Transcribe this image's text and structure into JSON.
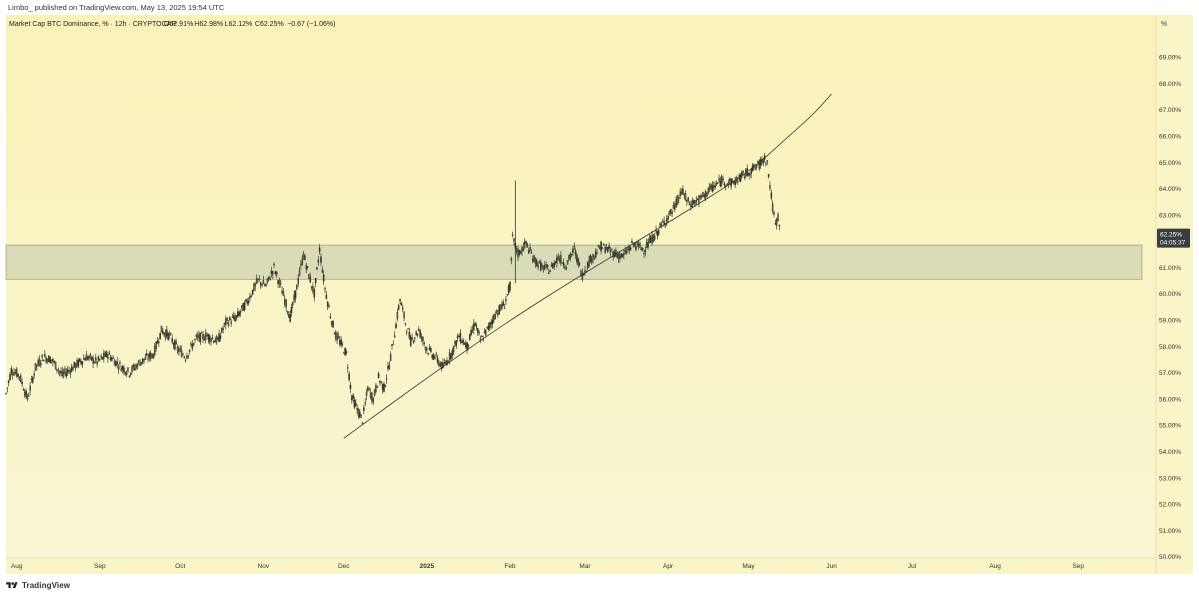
{
  "publish_info": "Limbo_ published on TradingView.com, May 13, 2025 19:54 UTC",
  "legend": {
    "symbol_text": "Market Cap BTC Dominance, % · 12h · CRYPTOCAP",
    "ohlc": [
      "O62.91%",
      "H62.98%",
      "L62.12%",
      "C62.25%"
    ],
    "change": "−0.67 (−1.06%)"
  },
  "scale_unit_label": "%",
  "price_label": {
    "value": "62.25%",
    "countdown": "04:05:37"
  },
  "branding": "TradingView",
  "colors": {
    "background_top": "#faf2b8",
    "background_bottom": "#f8f6d2",
    "candle": "#333a2c",
    "zone_fill": "#c9cfb0",
    "zone_border": "#8a8f78",
    "trendline": "#333333",
    "price_label_bg": "#3a3d3f",
    "logo": "#1e222d"
  },
  "chart_data": {
    "type": "line",
    "title": "Market Cap BTC Dominance, % · 12h · CRYPTOCAP",
    "xlabel": "",
    "ylabel": "",
    "ylim": [
      50.0,
      70.0
    ],
    "y_tick_labels": [
      "50.00%",
      "51.00%",
      "52.00%",
      "53.00%",
      "54.00%",
      "55.00%",
      "56.00%",
      "57.00%",
      "58.00%",
      "59.00%",
      "60.00%",
      "61.00%",
      "62.00%",
      "63.00%",
      "64.00%",
      "65.00%",
      "66.00%",
      "67.00%",
      "68.00%",
      "69.00%"
    ],
    "y_tick_values": [
      50,
      51,
      52,
      53,
      54,
      55,
      56,
      57,
      58,
      59,
      60,
      61,
      62,
      63,
      64,
      65,
      66,
      67,
      68,
      69
    ],
    "x_domain": [
      "2024-07-28",
      "2025-09-30"
    ],
    "x_tick_labels": [
      "Aug",
      "Sep",
      "Oct",
      "Nov",
      "Dec",
      "2025",
      "Feb",
      "Mar",
      "Apr",
      "May",
      "Jun",
      "Jul",
      "Aug",
      "Sep"
    ],
    "x_tick_dates": [
      "2024-08-01",
      "2024-09-01",
      "2024-10-01",
      "2024-11-01",
      "2024-12-01",
      "2025-01-01",
      "2025-02-01",
      "2025-03-01",
      "2025-04-01",
      "2025-05-01",
      "2025-06-01",
      "2025-07-01",
      "2025-08-01",
      "2025-09-01"
    ],
    "series": [
      {
        "style": "candlestick-approx",
        "points": [
          [
            "2024-07-28",
            56.2
          ],
          [
            "2024-07-30",
            57.1
          ],
          [
            "2024-08-02",
            56.9
          ],
          [
            "2024-08-05",
            56.0
          ],
          [
            "2024-08-08",
            57.2
          ],
          [
            "2024-08-11",
            57.6
          ],
          [
            "2024-08-14",
            57.5
          ],
          [
            "2024-08-18",
            56.9
          ],
          [
            "2024-08-22",
            57.2
          ],
          [
            "2024-08-27",
            57.6
          ],
          [
            "2024-08-31",
            57.4
          ],
          [
            "2024-09-04",
            57.7
          ],
          [
            "2024-09-08",
            57.3
          ],
          [
            "2024-09-12",
            57.0
          ],
          [
            "2024-09-16",
            57.4
          ],
          [
            "2024-09-21",
            57.7
          ],
          [
            "2024-09-24",
            58.6
          ],
          [
            "2024-09-27",
            58.4
          ],
          [
            "2024-09-30",
            57.9
          ],
          [
            "2024-10-03",
            57.6
          ],
          [
            "2024-10-07",
            58.3
          ],
          [
            "2024-10-11",
            58.4
          ],
          [
            "2024-10-15",
            58.2
          ],
          [
            "2024-10-18",
            58.9
          ],
          [
            "2024-10-22",
            59.1
          ],
          [
            "2024-10-26",
            59.7
          ],
          [
            "2024-10-30",
            60.5
          ],
          [
            "2024-11-02",
            60.3
          ],
          [
            "2024-11-05",
            61.0
          ],
          [
            "2024-11-08",
            60.1
          ],
          [
            "2024-11-11",
            59.1
          ],
          [
            "2024-11-13",
            60.0
          ],
          [
            "2024-11-16",
            61.5
          ],
          [
            "2024-11-18",
            60.7
          ],
          [
            "2024-11-20",
            60.0
          ],
          [
            "2024-11-22",
            61.7
          ],
          [
            "2024-11-24",
            60.2
          ],
          [
            "2024-11-26",
            59.2
          ],
          [
            "2024-11-28",
            58.4
          ],
          [
            "2024-11-30",
            58.1
          ],
          [
            "2024-12-02",
            57.7
          ],
          [
            "2024-12-04",
            56.1
          ],
          [
            "2024-12-06",
            55.6
          ],
          [
            "2024-12-08",
            55.2
          ],
          [
            "2024-12-10",
            56.4
          ],
          [
            "2024-12-12",
            56.0
          ],
          [
            "2024-12-14",
            56.8
          ],
          [
            "2024-12-16",
            56.4
          ],
          [
            "2024-12-18",
            57.3
          ],
          [
            "2024-12-20",
            58.5
          ],
          [
            "2024-12-22",
            59.8
          ],
          [
            "2024-12-24",
            58.9
          ],
          [
            "2024-12-26",
            58.2
          ],
          [
            "2024-12-29",
            58.6
          ],
          [
            "2025-01-01",
            57.9
          ],
          [
            "2025-01-04",
            57.6
          ],
          [
            "2025-01-07",
            57.2
          ],
          [
            "2025-01-10",
            57.7
          ],
          [
            "2025-01-13",
            58.4
          ],
          [
            "2025-01-16",
            58.0
          ],
          [
            "2025-01-19",
            58.9
          ],
          [
            "2025-01-21",
            58.2
          ],
          [
            "2025-01-24",
            58.7
          ],
          [
            "2025-01-27",
            59.3
          ],
          [
            "2025-01-30",
            59.6
          ],
          [
            "2025-02-01",
            60.3
          ],
          [
            "2025-02-02",
            62.1
          ],
          [
            "2025-02-04",
            61.5
          ],
          [
            "2025-02-07",
            61.9
          ],
          [
            "2025-02-10",
            61.3
          ],
          [
            "2025-02-13",
            61.0
          ],
          [
            "2025-02-16",
            60.9
          ],
          [
            "2025-02-19",
            61.4
          ],
          [
            "2025-02-22",
            61.1
          ],
          [
            "2025-02-25",
            61.7
          ],
          [
            "2025-02-28",
            60.7
          ],
          [
            "2025-03-03",
            61.3
          ],
          [
            "2025-03-07",
            61.8
          ],
          [
            "2025-03-11",
            61.6
          ],
          [
            "2025-03-15",
            61.4
          ],
          [
            "2025-03-19",
            61.9
          ],
          [
            "2025-03-23",
            61.7
          ],
          [
            "2025-03-27",
            62.2
          ],
          [
            "2025-03-31",
            62.8
          ],
          [
            "2025-04-03",
            63.2
          ],
          [
            "2025-04-06",
            63.9
          ],
          [
            "2025-04-09",
            63.4
          ],
          [
            "2025-04-13",
            63.6
          ],
          [
            "2025-04-17",
            64.0
          ],
          [
            "2025-04-21",
            64.3
          ],
          [
            "2025-04-25",
            64.2
          ],
          [
            "2025-04-29",
            64.5
          ],
          [
            "2025-05-02",
            64.7
          ],
          [
            "2025-05-05",
            64.9
          ],
          [
            "2025-05-07",
            65.2
          ],
          [
            "2025-05-08",
            65.0
          ],
          [
            "2025-05-09",
            64.1
          ],
          [
            "2025-05-10",
            63.3
          ],
          [
            "2025-05-11",
            62.6
          ],
          [
            "2025-05-12",
            62.9
          ],
          [
            "2025-05-13",
            62.25
          ]
        ]
      },
      {
        "style": "trendline-curve",
        "points": [
          [
            "2024-12-01",
            54.5
          ],
          [
            "2025-01-01",
            56.8
          ],
          [
            "2025-02-01",
            59.0
          ],
          [
            "2025-03-01",
            60.8
          ],
          [
            "2025-04-01",
            62.7
          ],
          [
            "2025-05-01",
            64.6
          ],
          [
            "2025-05-15",
            65.9
          ],
          [
            "2025-05-25",
            66.8
          ],
          [
            "2025-06-01",
            67.6
          ]
        ]
      }
    ],
    "zone": {
      "from": 60.55,
      "to": 61.85
    },
    "last_value": 62.25,
    "grid": false,
    "legend_position": "top-left"
  }
}
